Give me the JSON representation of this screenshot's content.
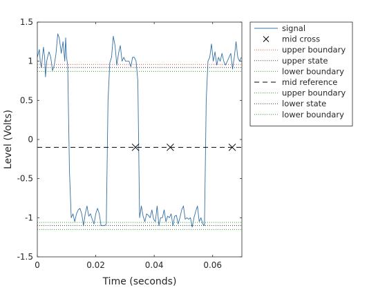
{
  "chart_data": {
    "type": "line",
    "xlabel": "Time (seconds)",
    "ylabel": "Level (Volts)",
    "xlim": [
      0,
      0.07
    ],
    "ylim": [
      -1.5,
      1.5
    ],
    "xticks": [
      0,
      0.02,
      0.04,
      0.06
    ],
    "xtick_labels": [
      "0",
      "0.02",
      "0.04",
      "0.06"
    ],
    "yticks": [
      -1.5,
      -1,
      -0.5,
      0,
      0.5,
      1,
      1.5
    ],
    "ytick_labels": [
      "-1.5",
      "-1",
      "-0.5",
      "0",
      "0.5",
      "1",
      "1.5"
    ],
    "grid": false,
    "legend_position": "outside-top-right",
    "series": [
      {
        "name": "signal",
        "kind": "line",
        "color": "#2f6fa6",
        "x": [
          0.0,
          0.0007,
          0.001,
          0.0014,
          0.0021,
          0.0025,
          0.0028,
          0.0032,
          0.0035,
          0.004,
          0.0046,
          0.0052,
          0.0058,
          0.0064,
          0.007,
          0.0075,
          0.0082,
          0.0088,
          0.0094,
          0.0097,
          0.01,
          0.0104,
          0.011,
          0.0116,
          0.0122,
          0.0128,
          0.0134,
          0.014,
          0.0146,
          0.0152,
          0.0158,
          0.0164,
          0.017,
          0.0176,
          0.0182,
          0.0188,
          0.0194,
          0.02,
          0.0206,
          0.0212,
          0.0218,
          0.0224,
          0.023,
          0.0236,
          0.0242,
          0.0248,
          0.0254,
          0.026,
          0.0266,
          0.0272,
          0.0278,
          0.0284,
          0.029,
          0.0296,
          0.0302,
          0.0308,
          0.0314,
          0.032,
          0.0326,
          0.0332,
          0.0338,
          0.0344,
          0.035,
          0.0356,
          0.0362,
          0.0368,
          0.0374,
          0.038,
          0.0386,
          0.0392,
          0.0398,
          0.0404,
          0.041,
          0.0416,
          0.0422,
          0.0428,
          0.0434,
          0.044,
          0.0446,
          0.0452,
          0.0458,
          0.0464,
          0.047,
          0.0476,
          0.0482,
          0.0488,
          0.0494,
          0.05,
          0.0506,
          0.0512,
          0.0518,
          0.0524,
          0.053,
          0.0536,
          0.0542,
          0.0548,
          0.0554,
          0.056,
          0.0566,
          0.0572,
          0.0578,
          0.0584,
          0.059,
          0.0596,
          0.0602,
          0.0608,
          0.0614,
          0.062,
          0.0626,
          0.0632,
          0.0638,
          0.0644,
          0.065,
          0.0656,
          0.0662,
          0.0668,
          0.0674,
          0.068,
          0.0686,
          0.0692,
          0.0698
        ],
        "y": [
          1.05,
          1.15,
          1.0,
          0.92,
          1.18,
          1.05,
          0.8,
          1.0,
          1.05,
          1.12,
          1.05,
          0.88,
          0.95,
          1.1,
          1.35,
          1.3,
          1.1,
          1.25,
          1.0,
          1.3,
          1.05,
          0.95,
          -0.4,
          -1.0,
          -0.95,
          -1.05,
          -0.95,
          -0.9,
          -0.88,
          -0.95,
          -1.1,
          -0.95,
          -0.85,
          -0.98,
          -0.95,
          -1.02,
          -1.08,
          -0.95,
          -0.88,
          -0.95,
          -1.1,
          -1.1,
          -1.1,
          -1.08,
          0.5,
          0.98,
          1.05,
          1.32,
          1.2,
          0.95,
          1.1,
          1.2,
          1.0,
          1.05,
          1.0,
          1.0,
          1.0,
          0.93,
          1.05,
          1.05,
          1.0,
          0.75,
          -1.0,
          -0.85,
          -0.98,
          -1.05,
          -0.95,
          -0.97,
          -1.0,
          -0.9,
          -1.02,
          -1.05,
          -0.85,
          -1.1,
          -1.0,
          -1.0,
          -0.9,
          -1.05,
          -0.98,
          -1.0,
          -0.95,
          -1.1,
          -0.98,
          -0.97,
          -1.08,
          -1.0,
          -0.9,
          -0.85,
          -1.02,
          -1.0,
          -1.02,
          -1.0,
          -1.12,
          -1.0,
          -0.92,
          -0.85,
          -1.05,
          -1.0,
          -1.08,
          -1.1,
          0.5,
          1.0,
          1.05,
          1.22,
          1.0,
          1.12,
          0.95,
          1.05,
          1.0,
          1.1,
          1.0,
          0.95,
          1.0,
          1.05,
          1.1,
          0.9,
          1.05,
          1.25,
          1.05,
          1.0,
          1.05
        ]
      },
      {
        "name": "mid cross",
        "kind": "marker",
        "marker": "x",
        "color": "#000000",
        "x": [
          0.0336,
          0.0455,
          0.0667
        ],
        "y": [
          -0.1,
          -0.1,
          -0.1
        ]
      },
      {
        "name": "upper boundary",
        "kind": "hline",
        "style": "dotted",
        "color": "#d9534f",
        "y": 0.96
      },
      {
        "name": "upper state",
        "kind": "hline",
        "style": "dotted",
        "color": "#333333",
        "y": 0.92
      },
      {
        "name": "lower boundary",
        "kind": "hline",
        "style": "dotted",
        "color": "#2ca02c",
        "y": 0.87
      },
      {
        "name": "mid reference",
        "kind": "hline",
        "style": "dashed",
        "color": "#000000",
        "y": -0.1
      },
      {
        "name": "upper boundary",
        "kind": "hline",
        "style": "dotted",
        "color": "#2ca02c",
        "y": -1.06
      },
      {
        "name": "lower state",
        "kind": "hline",
        "style": "dotted",
        "color": "#333333",
        "y": -1.1
      },
      {
        "name": "lower boundary",
        "kind": "hline",
        "style": "dotted",
        "color": "#2ca02c",
        "y": -1.15
      }
    ]
  }
}
